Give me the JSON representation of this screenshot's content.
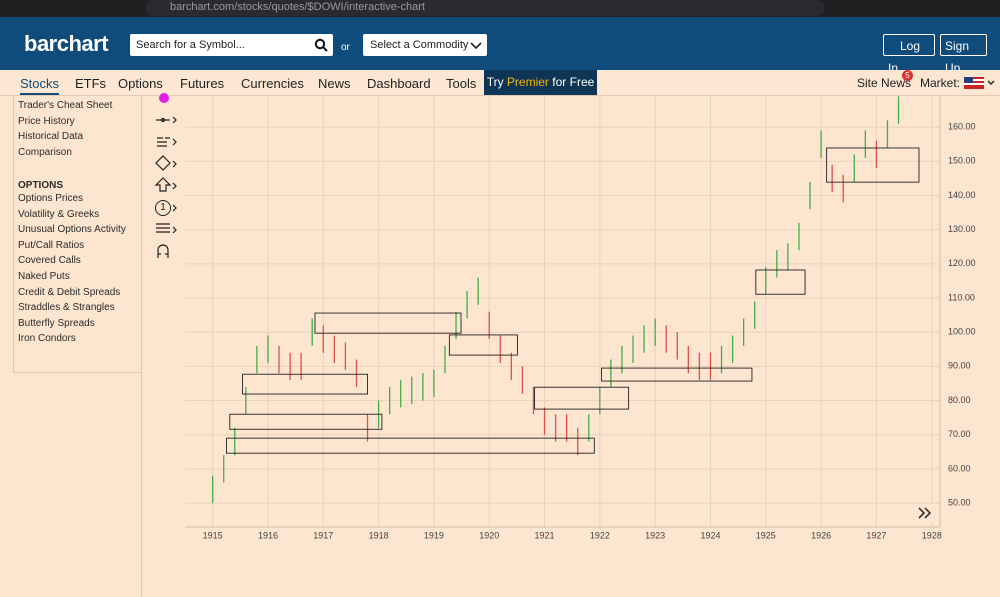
{
  "browser": {
    "url": "barchart.com/stocks/quotes/$DOWI/interactive-chart"
  },
  "header": {
    "logo": "barchart",
    "search_placeholder": "Search for a Symbol...",
    "or": "or",
    "commodity": "Select a Commodity",
    "login": "Log In",
    "signup": "Sign Up"
  },
  "nav": {
    "items": [
      "Stocks",
      "ETFs",
      "Options",
      "Futures",
      "Currencies",
      "News",
      "Dashboard",
      "Tools"
    ],
    "premier": [
      "Try",
      "Premier",
      "for Free"
    ],
    "site_news": "Site News",
    "news_badge": "5",
    "market": "Market:"
  },
  "sidebar": {
    "items": [
      "Trader's Cheat Sheet",
      "Price History",
      "Historical Data",
      "Comparison"
    ],
    "section": "OPTIONS",
    "options": [
      "Options Prices",
      "Volatility & Greeks",
      "Unusual Options Activity",
      "Put/Call Ratios",
      "Covered Calls",
      "Naked Puts",
      "Credit & Debit Spreads",
      "Straddles & Strangles",
      "Butterfly Spreads",
      "Iron Condors"
    ]
  },
  "tools": {
    "number_tool": "1"
  },
  "chart_data": {
    "type": "ohlc",
    "x": [
      1915.0,
      1915.2,
      1915.4,
      1915.6,
      1915.8,
      1916.0,
      1916.2,
      1916.4,
      1916.6,
      1916.8,
      1917.0,
      1917.2,
      1917.4,
      1917.6,
      1917.8,
      1918.0,
      1918.2,
      1918.4,
      1918.6,
      1918.8,
      1919.0,
      1919.2,
      1919.4,
      1919.6,
      1919.8,
      1920.0,
      1920.2,
      1920.4,
      1920.6,
      1920.8,
      1921.0,
      1921.2,
      1921.4,
      1921.6,
      1921.8,
      1922.0,
      1922.2,
      1922.4,
      1922.6,
      1922.8,
      1923.0,
      1923.2,
      1923.4,
      1923.6,
      1923.8,
      1924.0,
      1924.2,
      1924.4,
      1924.6,
      1924.8,
      1925.0,
      1925.2,
      1925.4,
      1925.6,
      1925.8,
      1926.0,
      1926.2,
      1926.4,
      1926.6,
      1926.8,
      1927.0,
      1927.2,
      1927.4
    ],
    "low": [
      50,
      56,
      64,
      76,
      88,
      91,
      88,
      86,
      86,
      96,
      94,
      91,
      89,
      84,
      68,
      72,
      76,
      78,
      79,
      80,
      81,
      88,
      98,
      104,
      108,
      98,
      91,
      86,
      82,
      76,
      70,
      68,
      68,
      64,
      68,
      76,
      84,
      88,
      91,
      94,
      96,
      94,
      92,
      88,
      86,
      86,
      88,
      91,
      96,
      101,
      111,
      116,
      118,
      124,
      136,
      151,
      141,
      138,
      144,
      151,
      148,
      154,
      161
    ],
    "high": [
      58,
      64,
      72,
      84,
      96,
      99,
      96,
      94,
      94,
      104,
      102,
      99,
      97,
      92,
      76,
      80,
      84,
      86,
      87,
      88,
      89,
      96,
      106,
      112,
      116,
      106,
      99,
      94,
      90,
      84,
      78,
      76,
      76,
      72,
      76,
      84,
      92,
      96,
      99,
      102,
      104,
      102,
      100,
      96,
      94,
      94,
      96,
      99,
      104,
      109,
      119,
      124,
      126,
      132,
      144,
      159,
      149,
      146,
      152,
      159,
      156,
      162,
      169
    ],
    "up": [
      true,
      true,
      true,
      true,
      true,
      true,
      false,
      false,
      false,
      true,
      false,
      false,
      false,
      false,
      false,
      true,
      true,
      true,
      true,
      true,
      true,
      true,
      true,
      true,
      true,
      false,
      false,
      false,
      false,
      false,
      false,
      false,
      false,
      false,
      true,
      true,
      true,
      true,
      true,
      true,
      true,
      false,
      false,
      false,
      false,
      false,
      true,
      true,
      true,
      true,
      true,
      true,
      true,
      true,
      true,
      true,
      false,
      false,
      true,
      true,
      false,
      true,
      true
    ],
    "up_color": "#3fae49",
    "down_color": "#e0504a",
    "boxes": [
      {
        "x0": 1915.54,
        "x1": 1917.8,
        "y0": 81.9,
        "y1": 87.7
      },
      {
        "x0": 1916.85,
        "x1": 1919.49,
        "y0": 99.7,
        "y1": 105.6
      },
      {
        "x0": 1915.31,
        "x1": 1918.06,
        "y0": 71.6,
        "y1": 76.0
      },
      {
        "x0": 1915.25,
        "x1": 1921.9,
        "y0": 64.6,
        "y1": 69.0
      },
      {
        "x0": 1919.28,
        "x1": 1920.51,
        "y0": 93.3,
        "y1": 99.2
      },
      {
        "x0": 1920.82,
        "x1": 1922.52,
        "y0": 77.5,
        "y1": 83.9
      },
      {
        "x0": 1922.03,
        "x1": 1924.75,
        "y0": 85.7,
        "y1": 89.5
      },
      {
        "x0": 1924.82,
        "x1": 1925.71,
        "y0": 111.1,
        "y1": 118.2
      },
      {
        "x0": 1926.1,
        "x1": 1927.77,
        "y0": 143.9,
        "y1": 153.9
      }
    ],
    "xlim": [
      1914.5,
      1928.15
    ],
    "xticks": [
      1915,
      1916,
      1917,
      1918,
      1919,
      1920,
      1921,
      1922,
      1923,
      1924,
      1925,
      1926,
      1927,
      1928
    ],
    "ylim": [
      43,
      169.4
    ],
    "yticks": [
      {
        "value": 50,
        "label": "50.00"
      },
      {
        "value": 60,
        "label": "60.00"
      },
      {
        "value": 70,
        "label": "70.00"
      },
      {
        "value": 80,
        "label": "80.00"
      },
      {
        "value": 90,
        "label": "90.00"
      },
      {
        "value": 100,
        "label": "100.00"
      },
      {
        "value": 110,
        "label": "110.00"
      },
      {
        "value": 120,
        "label": "120.00"
      },
      {
        "value": 130,
        "label": "130.00"
      },
      {
        "value": 140,
        "label": "140.00"
      },
      {
        "value": 150,
        "label": "150.00"
      },
      {
        "value": 160,
        "label": "160.00"
      }
    ],
    "grid": true
  }
}
